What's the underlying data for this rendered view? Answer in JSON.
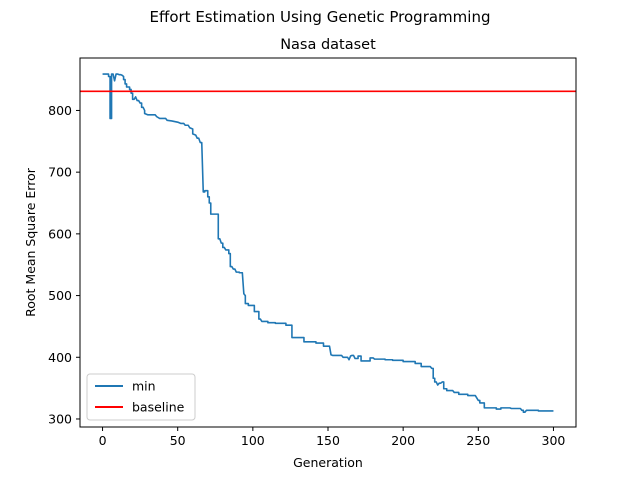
{
  "chart_data": {
    "type": "line",
    "suptitle": "Effort Estimation Using Genetic Programming",
    "title": "Nasa dataset",
    "xlabel": "Generation",
    "ylabel": "Root Mean Square Error",
    "xlim": [
      -15,
      315
    ],
    "ylim": [
      287,
      885
    ],
    "xticks": [
      0,
      50,
      100,
      150,
      200,
      250,
      300
    ],
    "yticks": [
      300,
      400,
      500,
      600,
      700,
      800
    ],
    "grid": false,
    "legend_position": "lower-left",
    "series": [
      {
        "name": "min",
        "color": "#1f77b4",
        "points": [
          [
            0,
            859
          ],
          [
            4,
            859
          ],
          [
            4,
            855
          ],
          [
            5,
            855
          ],
          [
            5,
            787
          ],
          [
            6,
            787
          ],
          [
            6,
            859
          ],
          [
            7,
            859
          ],
          [
            8,
            848
          ],
          [
            9,
            859
          ],
          [
            10,
            859
          ],
          [
            11,
            858
          ],
          [
            12,
            858
          ],
          [
            13,
            857
          ],
          [
            14,
            855
          ],
          [
            14,
            850
          ],
          [
            15,
            850
          ],
          [
            15,
            843
          ],
          [
            16,
            843
          ],
          [
            16,
            838
          ],
          [
            18,
            838
          ],
          [
            18,
            834
          ],
          [
            19,
            834
          ],
          [
            19,
            828
          ],
          [
            20,
            828
          ],
          [
            20,
            818
          ],
          [
            21,
            818
          ],
          [
            22,
            822
          ],
          [
            23,
            816
          ],
          [
            24,
            816
          ],
          [
            25,
            812
          ],
          [
            26,
            812
          ],
          [
            26,
            805
          ],
          [
            27,
            805
          ],
          [
            28,
            800
          ],
          [
            28,
            795
          ],
          [
            30,
            793
          ],
          [
            35,
            793
          ],
          [
            36,
            790
          ],
          [
            38,
            787
          ],
          [
            42,
            787
          ],
          [
            43,
            784
          ],
          [
            46,
            783
          ],
          [
            50,
            781
          ],
          [
            52,
            779
          ],
          [
            54,
            779
          ],
          [
            55,
            776
          ],
          [
            57,
            776
          ],
          [
            58,
            772
          ],
          [
            60,
            770
          ],
          [
            60,
            762
          ],
          [
            62,
            760
          ],
          [
            63,
            755
          ],
          [
            64,
            755
          ],
          [
            65,
            748
          ],
          [
            66,
            748
          ],
          [
            67,
            668
          ],
          [
            68,
            668
          ],
          [
            68,
            670
          ],
          [
            70,
            670
          ],
          [
            70,
            660
          ],
          [
            71,
            660
          ],
          [
            71,
            650
          ],
          [
            72,
            650
          ],
          [
            72,
            632
          ],
          [
            77,
            632
          ],
          [
            77,
            592
          ],
          [
            78,
            592
          ],
          [
            79,
            585
          ],
          [
            80,
            585
          ],
          [
            80,
            578
          ],
          [
            81,
            578
          ],
          [
            82,
            574
          ],
          [
            84,
            574
          ],
          [
            84,
            568
          ],
          [
            85,
            568
          ],
          [
            85,
            547
          ],
          [
            86,
            547
          ],
          [
            87,
            543
          ],
          [
            88,
            543
          ],
          [
            89,
            538
          ],
          [
            91,
            538
          ],
          [
            91,
            537
          ],
          [
            93,
            537
          ],
          [
            94,
            503
          ],
          [
            95,
            500
          ],
          [
            95,
            487
          ],
          [
            97,
            487
          ],
          [
            97,
            484
          ],
          [
            101,
            484
          ],
          [
            101,
            474
          ],
          [
            104,
            474
          ],
          [
            104,
            462
          ],
          [
            105,
            462
          ],
          [
            106,
            458
          ],
          [
            110,
            458
          ],
          [
            110,
            456
          ],
          [
            115,
            456
          ],
          [
            115,
            455
          ],
          [
            122,
            455
          ],
          [
            122,
            452
          ],
          [
            126,
            452
          ],
          [
            126,
            432
          ],
          [
            134,
            432
          ],
          [
            134,
            425
          ],
          [
            142,
            425
          ],
          [
            142,
            423
          ],
          [
            147,
            423
          ],
          [
            147,
            418
          ],
          [
            151,
            418
          ],
          [
            152,
            404
          ],
          [
            153,
            403
          ],
          [
            159,
            403
          ],
          [
            160,
            400
          ],
          [
            163,
            400
          ],
          [
            164,
            396
          ],
          [
            165,
            402
          ],
          [
            166,
            403
          ],
          [
            167,
            403
          ],
          [
            168,
            398
          ],
          [
            170,
            398
          ],
          [
            170,
            402
          ],
          [
            172,
            402
          ],
          [
            172,
            394
          ],
          [
            178,
            394
          ],
          [
            178,
            399
          ],
          [
            180,
            399
          ],
          [
            181,
            397
          ],
          [
            188,
            397
          ],
          [
            188,
            396
          ],
          [
            193,
            396
          ],
          [
            193,
            395
          ],
          [
            200,
            395
          ],
          [
            200,
            393
          ],
          [
            208,
            393
          ],
          [
            208,
            390
          ],
          [
            212,
            390
          ],
          [
            212,
            385
          ],
          [
            218,
            385
          ],
          [
            219,
            382
          ],
          [
            220,
            382
          ],
          [
            220,
            366
          ],
          [
            221,
            366
          ],
          [
            221,
            360
          ],
          [
            222,
            360
          ],
          [
            223,
            355
          ],
          [
            224,
            358
          ],
          [
            225,
            358
          ],
          [
            226,
            360
          ],
          [
            227,
            360
          ],
          [
            227,
            349
          ],
          [
            229,
            349
          ],
          [
            229,
            346
          ],
          [
            233,
            346
          ],
          [
            234,
            343
          ],
          [
            237,
            343
          ],
          [
            237,
            340
          ],
          [
            243,
            340
          ],
          [
            243,
            338
          ],
          [
            248,
            338
          ],
          [
            250,
            330
          ],
          [
            251,
            330
          ],
          [
            251,
            326
          ],
          [
            254,
            326
          ],
          [
            254,
            318
          ],
          [
            262,
            318
          ],
          [
            262,
            316
          ],
          [
            265,
            316
          ],
          [
            265,
            318
          ],
          [
            271,
            318
          ],
          [
            272,
            317
          ],
          [
            278,
            317
          ],
          [
            279,
            314
          ],
          [
            280,
            314
          ],
          [
            280,
            311
          ],
          [
            281,
            311
          ],
          [
            282,
            314
          ],
          [
            290,
            314
          ],
          [
            290,
            313
          ],
          [
            300,
            313
          ]
        ]
      },
      {
        "name": "baseline",
        "color": "#ff0000",
        "hline": 831
      }
    ]
  }
}
